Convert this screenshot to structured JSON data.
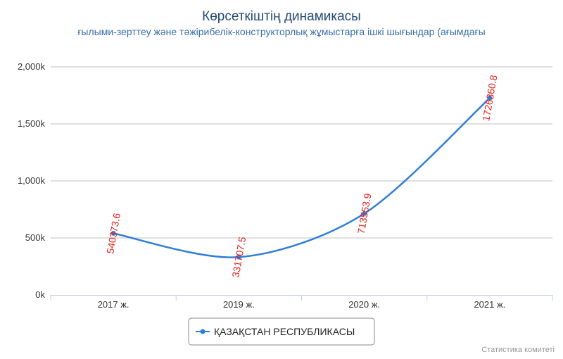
{
  "colors": {
    "series": "#2f7ed8",
    "data_label": "#e8211a",
    "title": "#244b74",
    "subtitle": "#3a6fa3",
    "grid": "#c0c0c0",
    "axis": "#c0d0e0"
  },
  "chart_data": {
    "type": "line",
    "title": "Көрсеткіштің динамикасы",
    "subtitle": "ғылыми-зерттеу және тәжірибелік-конструкторлық жұмыстарға ішкі шығындар (ағымдағы",
    "categories": [
      "2017 ж.",
      "2019 ж.",
      "2020 ж.",
      "2021 ж."
    ],
    "series": [
      {
        "name": "ҚАЗАҚСТАН РЕСПУБЛИКАСЫ",
        "values": [
          540373.6,
          331707.5,
          713553.9,
          1726360.8
        ],
        "labels": [
          "540373.6",
          "331707.5",
          "713553.9",
          "1726360.8"
        ]
      }
    ],
    "ylim": [
      0,
      2000000
    ],
    "y_ticks": [
      {
        "value": 0,
        "label": "0k"
      },
      {
        "value": 500000,
        "label": "500k"
      },
      {
        "value": 1000000,
        "label": "1,000k"
      },
      {
        "value": 1500000,
        "label": "1,500k"
      },
      {
        "value": 2000000,
        "label": "2,000k"
      }
    ],
    "grid": true,
    "legend_position": "bottom-center",
    "smooth": true
  },
  "credits": "Статистика комитеті"
}
